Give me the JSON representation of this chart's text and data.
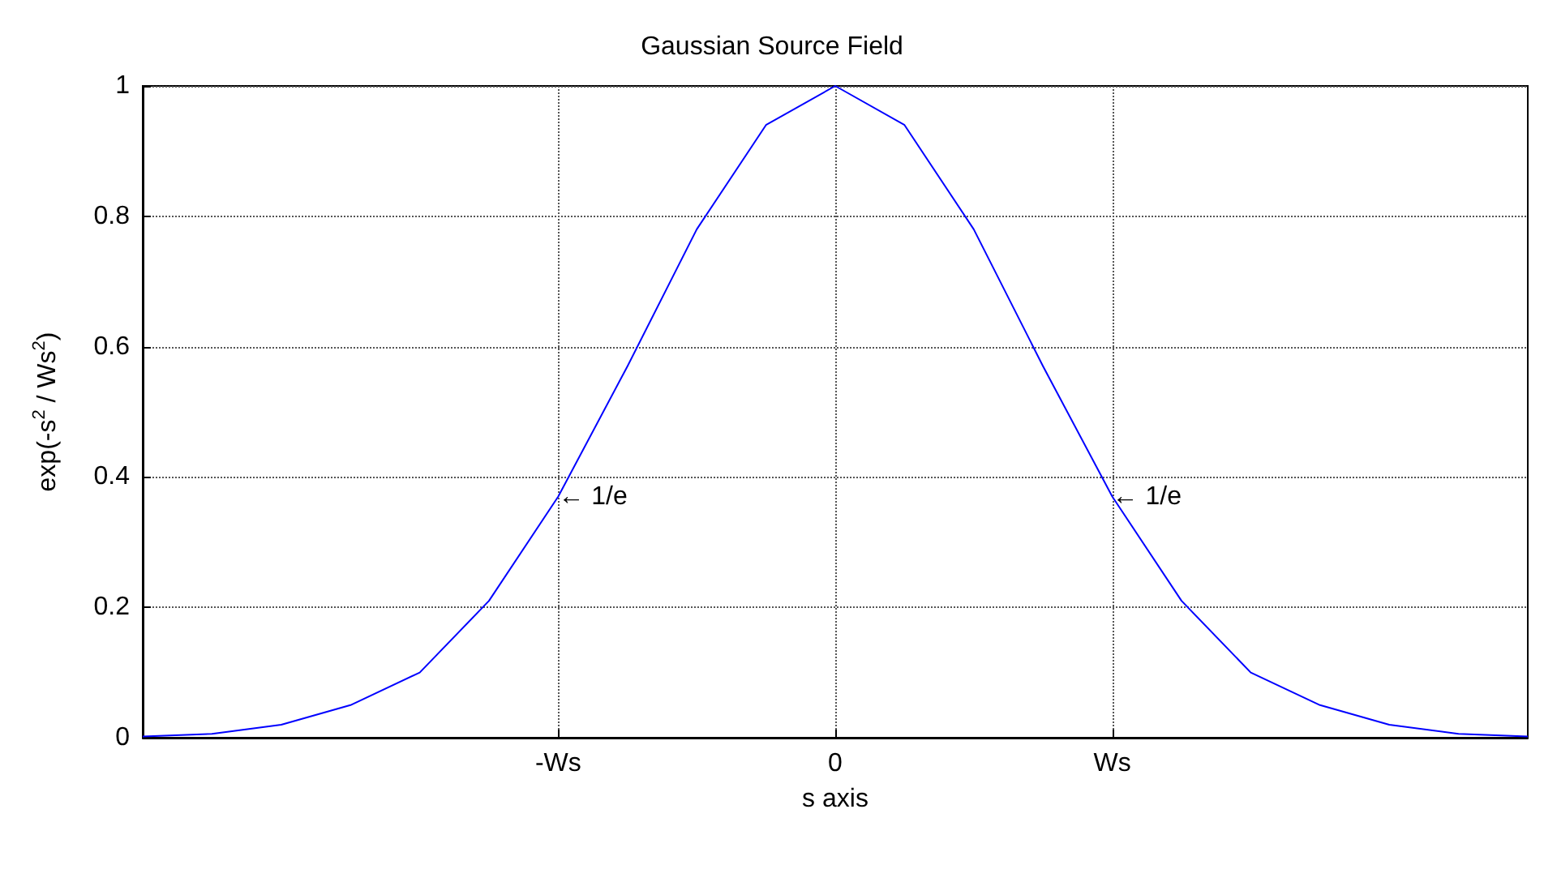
{
  "chart_data": {
    "type": "line",
    "title": "Gaussian Source Field",
    "xlabel": "s axis",
    "ylabel": "exp(-s$^{2}$ / Ws$^{2}$)",
    "categories": [
      null,
      null,
      null,
      null,
      null,
      null,
      "-Ws",
      null,
      null,
      null,
      "0",
      null,
      null,
      null,
      "Ws",
      null,
      null,
      null,
      null,
      null,
      null
    ],
    "series": [
      {
        "color": "#0000ff",
        "values": [
          0.002,
          0.006,
          0.02,
          0.05,
          0.1,
          0.21,
          0.37,
          0.57,
          0.78,
          0.94,
          1,
          0.94,
          0.78,
          0.57,
          0.37,
          0.21,
          0.1,
          0.05,
          0.02,
          0.006,
          0.002
        ]
      }
    ],
    "ylim": [
      0,
      1
    ],
    "yticks": [
      0,
      0.2,
      0.4,
      0.6,
      0.8,
      1
    ],
    "annotations": [
      {
        "text": "← 1/e",
        "x": "-Ws",
        "y": 0.37
      },
      {
        "text": "← 1/e",
        "x": "Ws",
        "y": 0.37
      }
    ],
    "grid": true,
    "marker": "none",
    "line_style": "solid"
  }
}
